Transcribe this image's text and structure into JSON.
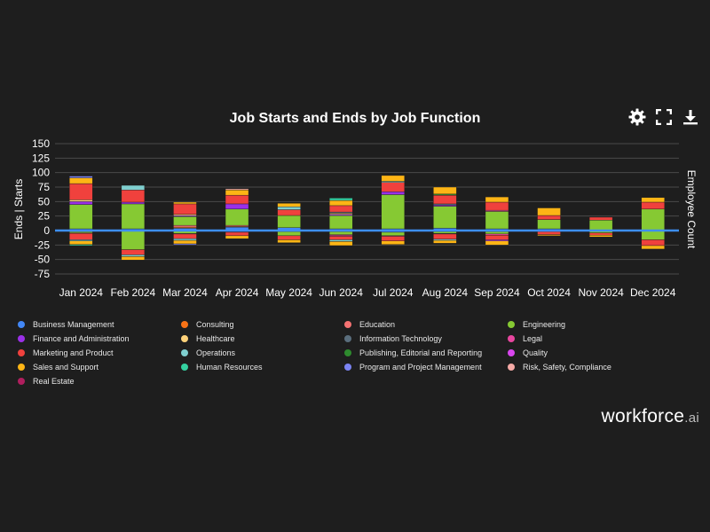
{
  "toolbar": {
    "settings_icon": "gear-icon",
    "fullscreen_icon": "expand-icon",
    "download_icon": "download-icon"
  },
  "brand": {
    "name": "workforce",
    "suffix": ".ai"
  },
  "chart_data": {
    "type": "bar",
    "stacked": true,
    "title": "Job Starts and Ends by Job Function",
    "ylabel": "Ends | Starts",
    "y2label": "Employee Count",
    "ylim": [
      -75,
      150
    ],
    "yticks": [
      150,
      125,
      100,
      75,
      50,
      25,
      0,
      -25,
      -50,
      -75
    ],
    "grid": true,
    "legend": "bottom",
    "categories": [
      "Jan 2024",
      "Feb 2024",
      "Mar 2024",
      "Apr 2024",
      "May 2024",
      "Jun 2024",
      "Jul 2024",
      "Aug 2024",
      "Sep 2024",
      "Oct 2024",
      "Nov 2024",
      "Dec 2024"
    ],
    "series": [
      {
        "name": "Business Management",
        "color": "#4287f5",
        "starts": [
          3,
          3,
          4,
          6,
          5,
          3,
          3,
          4,
          3,
          3,
          0,
          0
        ],
        "ends": [
          -2,
          -1,
          -1,
          0,
          -2,
          -2,
          -3,
          -2,
          -2,
          -2,
          0,
          0
        ]
      },
      {
        "name": "Consulting",
        "color": "#f97316",
        "starts": [
          0,
          0,
          2,
          1,
          0,
          0,
          0,
          0,
          0,
          0,
          0,
          0
        ],
        "ends": [
          0,
          0,
          0,
          0,
          0,
          0,
          0,
          0,
          0,
          0,
          0,
          0
        ]
      },
      {
        "name": "Education",
        "color": "#f47272",
        "starts": [
          0,
          0,
          3,
          2,
          0,
          0,
          0,
          0,
          0,
          0,
          0,
          0
        ],
        "ends": [
          0,
          0,
          0,
          0,
          0,
          0,
          0,
          0,
          0,
          0,
          0,
          0
        ]
      },
      {
        "name": "Engineering",
        "color": "#86c933",
        "starts": [
          42,
          43,
          15,
          28,
          21,
          23,
          59,
          38,
          30,
          16,
          18,
          37
        ],
        "ends": [
          -2,
          -32,
          -4,
          -2,
          -7,
          -5,
          -6,
          -3,
          -4,
          0,
          -4,
          -16
        ]
      },
      {
        "name": "Finance and Administration",
        "color": "#9b30e8",
        "starts": [
          5,
          3,
          2,
          9,
          0,
          2,
          5,
          2,
          0,
          0,
          0,
          0
        ],
        "ends": [
          0,
          0,
          0,
          0,
          0,
          0,
          0,
          0,
          0,
          0,
          0,
          0
        ]
      },
      {
        "name": "Healthcare",
        "color": "#ffd27a",
        "starts": [
          3,
          0,
          2,
          0,
          0,
          2,
          0,
          0,
          0,
          0,
          0,
          0
        ],
        "ends": [
          -1,
          0,
          -1,
          0,
          0,
          -1,
          0,
          0,
          0,
          0,
          0,
          0
        ]
      },
      {
        "name": "Information Technology",
        "color": "#5a6e7d",
        "starts": [
          0,
          0,
          0,
          0,
          0,
          2,
          0,
          2,
          0,
          0,
          0,
          0
        ],
        "ends": [
          0,
          0,
          0,
          0,
          0,
          0,
          0,
          -1,
          0,
          0,
          0,
          0
        ]
      },
      {
        "name": "Legal",
        "color": "#e8469f",
        "starts": [
          0,
          0,
          0,
          0,
          0,
          0,
          0,
          0,
          2,
          0,
          0,
          0
        ],
        "ends": [
          0,
          0,
          0,
          -1,
          0,
          -2,
          -1,
          0,
          -2,
          0,
          0,
          0
        ]
      },
      {
        "name": "Marketing and Product",
        "color": "#f0413d",
        "starts": [
          28,
          21,
          18,
          15,
          10,
          11,
          16,
          15,
          14,
          7,
          5,
          12
        ],
        "ends": [
          -11,
          -9,
          -8,
          -6,
          -7,
          -6,
          -8,
          -9,
          -8,
          -5,
          -4,
          -10
        ]
      },
      {
        "name": "Operations",
        "color": "#7fcfcf",
        "starts": [
          0,
          8,
          0,
          0,
          5,
          0,
          2,
          0,
          0,
          0,
          0,
          0
        ],
        "ends": [
          -2,
          -3,
          -3,
          0,
          0,
          -3,
          0,
          -2,
          0,
          0,
          0,
          0
        ]
      },
      {
        "name": "Publishing, Editorial and Reporting",
        "color": "#2e8b2e",
        "starts": [
          0,
          0,
          0,
          0,
          0,
          0,
          0,
          2,
          0,
          0,
          0,
          0
        ],
        "ends": [
          0,
          0,
          0,
          0,
          0,
          0,
          0,
          0,
          0,
          0,
          0,
          0
        ]
      },
      {
        "name": "Quality",
        "color": "#d946ef",
        "starts": [
          0,
          0,
          0,
          0,
          0,
          0,
          0,
          0,
          0,
          0,
          0,
          0
        ],
        "ends": [
          0,
          0,
          0,
          0,
          0,
          0,
          0,
          0,
          -2,
          0,
          0,
          0
        ]
      },
      {
        "name": "Sales and Support",
        "color": "#fdb515",
        "starts": [
          10,
          0,
          3,
          9,
          6,
          9,
          10,
          12,
          9,
          13,
          0,
          8
        ],
        "ends": [
          -6,
          -6,
          -6,
          -5,
          -5,
          -7,
          -6,
          -5,
          -7,
          -2,
          -3,
          -6
        ]
      },
      {
        "name": "Human Resources",
        "color": "#34d1a0",
        "starts": [
          0,
          0,
          0,
          0,
          0,
          4,
          0,
          0,
          0,
          0,
          0,
          0
        ],
        "ends": [
          -2,
          0,
          0,
          0,
          0,
          0,
          0,
          0,
          0,
          0,
          0,
          0
        ]
      },
      {
        "name": "Program and Project Management",
        "color": "#7b83f2",
        "starts": [
          3,
          0,
          0,
          0,
          0,
          0,
          0,
          0,
          0,
          0,
          0,
          0
        ],
        "ends": [
          0,
          0,
          -2,
          0,
          0,
          0,
          0,
          0,
          0,
          0,
          0,
          0
        ]
      },
      {
        "name": "Risk, Safety, Compliance",
        "color": "#f5aaa6",
        "starts": [
          0,
          0,
          0,
          2,
          0,
          0,
          0,
          0,
          0,
          0,
          0,
          0
        ],
        "ends": [
          0,
          0,
          0,
          0,
          0,
          0,
          0,
          0,
          0,
          0,
          0,
          0
        ]
      },
      {
        "name": "Real Estate",
        "color": "#b01e5e",
        "starts": [
          0,
          0,
          0,
          0,
          0,
          0,
          0,
          0,
          0,
          0,
          0,
          0
        ],
        "ends": [
          0,
          0,
          0,
          0,
          0,
          0,
          0,
          0,
          0,
          0,
          0,
          0
        ]
      }
    ]
  }
}
